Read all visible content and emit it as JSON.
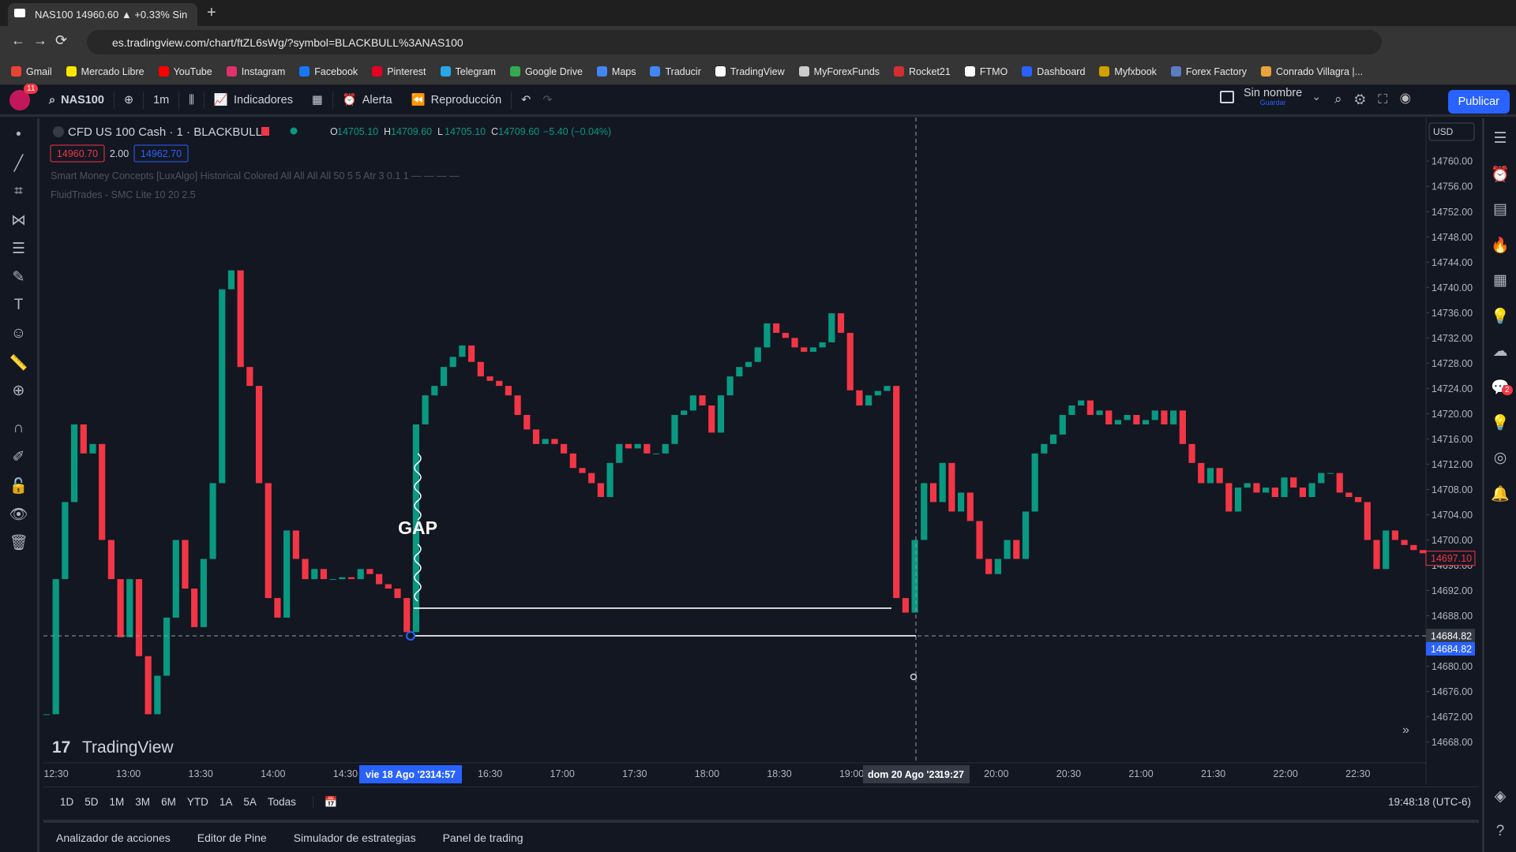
{
  "browser": {
    "tab_title": "NAS100 14960.60 ▲ +0.33% Sin",
    "url": "es.tradingview.com/chart/ftZL6sWg/?symbol=BLACKBULL%3ANAS100",
    "bookmarks": [
      "Gmail",
      "Mercado Libre",
      "YouTube",
      "Instagram",
      "Facebook",
      "Pinterest",
      "Telegram",
      "Google Drive",
      "Maps",
      "Traducir",
      "TradingView",
      "MyForexFunds",
      "Rocket21",
      "FTMO",
      "Dashboard",
      "Myfxbook",
      "Forex Factory",
      "Conrado Villagra |..."
    ]
  },
  "toolbar": {
    "avatar_badge": "11",
    "symbol": "NAS100",
    "interval": "1m",
    "indicators": "Indicadores",
    "alert": "Alerta",
    "replay": "Reproducción",
    "layout_name": "Sin nombre",
    "layout_save": "Guardar",
    "publish": "Publicar"
  },
  "legend": {
    "title": "CFD US 100 Cash · 1 · BLACKBULL",
    "ohlc": [
      {
        "key": "O",
        "value": "14705.10"
      },
      {
        "key": "H",
        "value": "14709.60"
      },
      {
        "key": "L",
        "value": "14705.10"
      },
      {
        "key": "C",
        "value": "14709.60"
      }
    ],
    "change": "−5.40 (−0.04%)",
    "bid": "14960.70",
    "spread": "2.00",
    "ask": "14962.70",
    "indicators": [
      "Smart Money Concepts [LuxAlgo] Historical Colored All All All All 50 5 5 Atr 3 0.1 1 — — — —",
      "FluidTrades - SMC Lite 10 20 2.5"
    ]
  },
  "annotation": "GAP",
  "watermark": "TradingView",
  "chart_data": {
    "type": "candlestick",
    "currency": "USD",
    "up_color": "#089981",
    "down_color": "#f23645",
    "grid": false,
    "categories": [
      "12:30",
      "13:00",
      "13:30",
      "14:00",
      "14:30",
      null,
      "16:30",
      "17:00",
      "17:30",
      "18:00",
      "18:30",
      "19:00",
      null,
      "20:00",
      "20:30",
      "21:00",
      "21:30",
      "22:00",
      "22:30"
    ],
    "closes": [
      14672.4,
      14693.8,
      14706,
      14718.3,
      14713.7,
      14715.2,
      14700,
      14693.8,
      14684.6,
      14693.8,
      14681.6,
      14672.4,
      14678.5,
      14687.7,
      14700,
      14692.3,
      14686.2,
      14697,
      14709,
      14739.7,
      14742.7,
      14727.4,
      14724.4,
      14709,
      14690.8,
      14687.7,
      14701.5,
      14697,
      14693.8,
      14695.4,
      14693.8,
      14693.8,
      14694.1,
      14693.8,
      14695.4,
      14694.6,
      14693,
      14692.3,
      14690.8,
      14685.4,
      14718.3,
      14722.9,
      14724.4,
      14727.4,
      14729,
      14730.8,
      14728.2,
      14725.9,
      14725.2,
      14724.4,
      14722.9,
      14719.8,
      14717.5,
      14715.2,
      14716,
      14715.2,
      14713.7,
      14711.4,
      14710.6,
      14709,
      14706.8,
      14712.2,
      14715.2,
      14714.5,
      14715.2,
      14713.7,
      14713.7,
      14715.2,
      14719.8,
      14720.5,
      14722.9,
      14721.3,
      14717,
      14722.9,
      14725.9,
      14727.4,
      14728.2,
      14730.5,
      14734.3,
      14732.8,
      14732,
      14730.5,
      14729.8,
      14730.5,
      14731.3,
      14735.9,
      14732.8,
      14723.7,
      14721.3,
      14722.9,
      14723.6,
      14724.4,
      14690.8,
      14688.5,
      14700,
      14709,
      14706,
      14712.2,
      14704.5,
      14707.5,
      14703,
      14697,
      14694.6,
      14697,
      14700,
      14697,
      14704.5,
      14713.7,
      14715.2,
      14716.7,
      14719.8,
      14721.3,
      14722.1,
      14719.8,
      14720.5,
      14718.3,
      14719,
      14719.8,
      14718.3,
      14719,
      14720.5,
      14718.3,
      14720.5,
      14715.2,
      14712.2,
      14709,
      14711.4,
      14709,
      14704.5,
      14708.3,
      14709,
      14707.5,
      14708.3,
      14706.8,
      14709.9,
      14708.3,
      14706.8,
      14709,
      14710.6,
      14710.6,
      14707.5,
      14706.8,
      14706,
      14700,
      14695.4,
      14701.5,
      14700,
      14699.2,
      14698.4,
      14697.9
    ],
    "ylim": [
      14664.7,
      14766.9
    ],
    "yticks": [
      {
        "value": 14668,
        "label": "14668.00"
      },
      {
        "value": 14672,
        "label": "14672.00"
      },
      {
        "value": 14676,
        "label": "14676.00"
      },
      {
        "value": 14680,
        "label": "14680.00"
      },
      {
        "value": 14684,
        "label": "14684.00"
      },
      {
        "value": 14688,
        "label": "14688.00"
      },
      {
        "value": 14692,
        "label": "14692.00"
      },
      {
        "value": 14696,
        "label": "14696.00"
      },
      {
        "value": 14700,
        "label": "14700.00"
      },
      {
        "value": 14704,
        "label": "14704.00"
      },
      {
        "value": 14708,
        "label": "14708.00"
      },
      {
        "value": 14712,
        "label": "14712.00"
      },
      {
        "value": 14716,
        "label": "14716.00"
      },
      {
        "value": 14720,
        "label": "14720.00"
      },
      {
        "value": 14724,
        "label": "14724.00"
      },
      {
        "value": 14728,
        "label": "14728.00"
      },
      {
        "value": 14732,
        "label": "14732.00"
      },
      {
        "value": 14736,
        "label": "14736.00"
      },
      {
        "value": 14740,
        "label": "14740.00"
      },
      {
        "value": 14744,
        "label": "14744.00"
      },
      {
        "value": 14748,
        "label": "14748.00"
      },
      {
        "value": 14752,
        "label": "14752.00"
      },
      {
        "value": 14756,
        "label": "14756.00"
      },
      {
        "value": 14760,
        "label": "14760.00"
      }
    ],
    "last_price": {
      "value": 14697.1,
      "label": "14697.10"
    },
    "crosshair_price": {
      "value": 14684.82,
      "label": "14684.82"
    },
    "gap_top": 14689.2,
    "crosshair_start": {
      "date": "vie 18 Ago '23",
      "time": "14:57"
    },
    "crosshair_end": {
      "date": "dom 20 Ago '23",
      "time": "19:27"
    }
  },
  "range_bar": [
    "1D",
    "5D",
    "1M",
    "3M",
    "6M",
    "YTD",
    "1A",
    "5A",
    "Todas"
  ],
  "clock": "19:48:18 (UTC-6)",
  "bottom_tabs": [
    "Analizador de acciones",
    "Editor de Pine",
    "Simulador de estrategias",
    "Panel de trading"
  ],
  "sidebar_badge": "2"
}
